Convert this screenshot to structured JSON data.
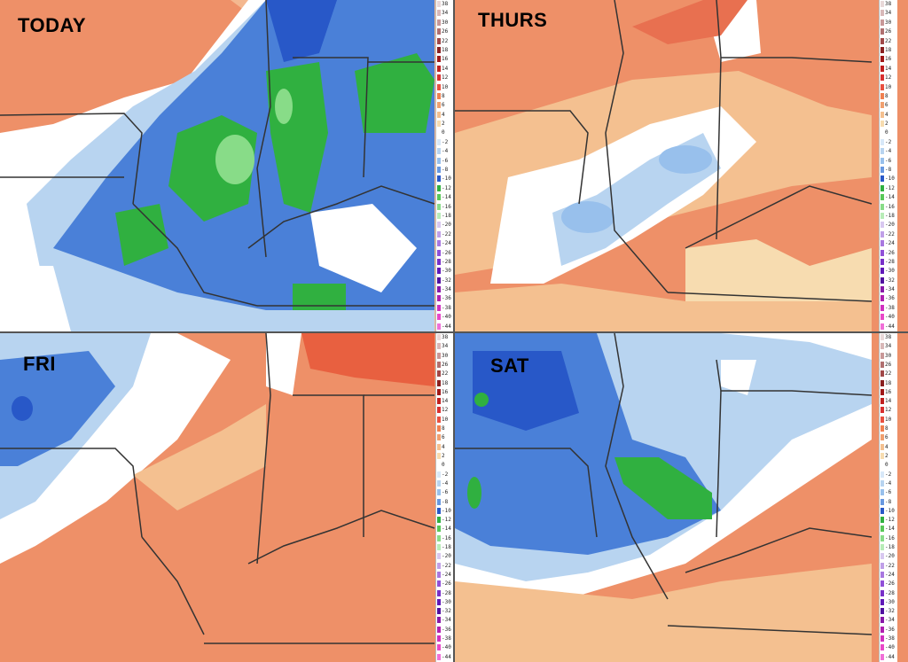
{
  "panels": [
    {
      "id": "today",
      "title": "TODAY"
    },
    {
      "id": "thurs",
      "title": "THURS"
    },
    {
      "id": "fri",
      "title": "FRI"
    },
    {
      "id": "sat",
      "title": "SAT"
    }
  ],
  "color_scale": {
    "labels": [
      "38",
      "34",
      "30",
      "26",
      "22",
      "18",
      "16",
      "14",
      "12",
      "10",
      "8",
      "6",
      "4",
      "2",
      "0",
      "-2",
      "-4",
      "-6",
      "-8",
      "-10",
      "-12",
      "-14",
      "-16",
      "-18",
      "-20",
      "-22",
      "-24",
      "-26",
      "-28",
      "-30",
      "-32",
      "-34",
      "-36",
      "-38",
      "-40",
      "-44"
    ],
    "colors": [
      "#e8d8d8",
      "#d8b8b8",
      "#c89898",
      "#b07070",
      "#a04848",
      "#8a2020",
      "#a01818",
      "#c02020",
      "#d83030",
      "#e85040",
      "#f08050",
      "#f0a070",
      "#f4c090",
      "#f7dcb0",
      "#ffffff",
      "#d8e8f8",
      "#b8d4f0",
      "#98c0ec",
      "#6898e0",
      "#2858c8",
      "#30b040",
      "#58c858",
      "#88dc88",
      "#b8ecb8",
      "#d8c8f0",
      "#c0a0e8",
      "#a878e0",
      "#9050d8",
      "#7830c8",
      "#6018b8",
      "#5010a0",
      "#8818a8",
      "#b020b0",
      "#d030c0",
      "#e848c8",
      "#f070d8"
    ]
  },
  "colors": {
    "warm": "#ee9068",
    "warm_light": "#f4c090",
    "neutral": "#ffffff",
    "cool_light": "#b8d4f0",
    "cool": "#4a80d8",
    "cool_dark": "#2858c8",
    "green": "#30b040",
    "green_light": "#88dc88",
    "border": "#333333"
  }
}
